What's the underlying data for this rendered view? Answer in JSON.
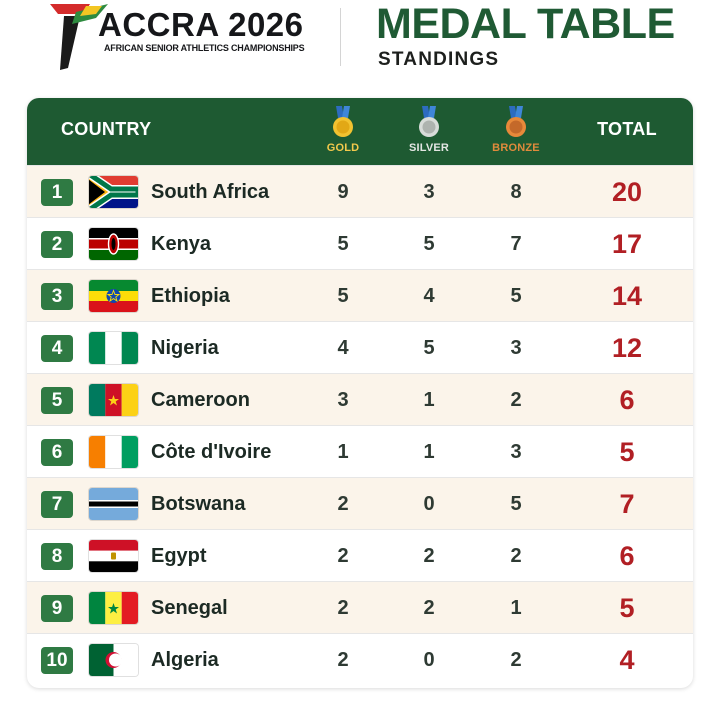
{
  "header": {
    "logo_title": "ACCRA 2026",
    "logo_subtitle": "AFRICAN SENIOR ATHLETICS CHAMPIONSHIPS",
    "title": "MEDAL TABLE",
    "subtitle": "STANDINGS"
  },
  "table": {
    "columns": {
      "country": "COUNTRY",
      "gold": "GOLD",
      "silver": "SILVER",
      "bronze": "BRONZE",
      "total": "TOTAL"
    },
    "rows": [
      {
        "rank": "1",
        "country": "South Africa",
        "flag": "south-africa",
        "gold": "9",
        "silver": "3",
        "bronze": "8",
        "total": "20"
      },
      {
        "rank": "2",
        "country": "Kenya",
        "flag": "kenya",
        "gold": "5",
        "silver": "5",
        "bronze": "7",
        "total": "17"
      },
      {
        "rank": "3",
        "country": "Ethiopia",
        "flag": "ethiopia",
        "gold": "5",
        "silver": "4",
        "bronze": "5",
        "total": "14"
      },
      {
        "rank": "4",
        "country": "Nigeria",
        "flag": "nigeria",
        "gold": "4",
        "silver": "5",
        "bronze": "3",
        "total": "12"
      },
      {
        "rank": "5",
        "country": "Cameroon",
        "flag": "cameroon",
        "gold": "3",
        "silver": "1",
        "bronze": "2",
        "total": "6"
      },
      {
        "rank": "6",
        "country": "Côte d'Ivoire",
        "flag": "cote-divoire",
        "gold": "1",
        "silver": "1",
        "bronze": "3",
        "total": "5"
      },
      {
        "rank": "7",
        "country": "Botswana",
        "flag": "botswana",
        "gold": "2",
        "silver": "0",
        "bronze": "5",
        "total": "7"
      },
      {
        "rank": "8",
        "country": "Egypt",
        "flag": "egypt",
        "gold": "2",
        "silver": "2",
        "bronze": "2",
        "total": "6"
      },
      {
        "rank": "9",
        "country": "Senegal",
        "flag": "senegal",
        "gold": "2",
        "silver": "2",
        "bronze": "1",
        "total": "5"
      },
      {
        "rank": "10",
        "country": "Algeria",
        "flag": "algeria",
        "gold": "2",
        "silver": "0",
        "bronze": "2",
        "total": "4"
      }
    ]
  },
  "colors": {
    "header_green": "#1e5a32",
    "rank_green": "#2f7a43",
    "title_green": "#1f5a34",
    "total_red": "#b11f24",
    "gold": "#f2c94c",
    "silver": "#c9ccc9",
    "bronze": "#e08a3c",
    "tint_row": "#fbf4ea"
  }
}
